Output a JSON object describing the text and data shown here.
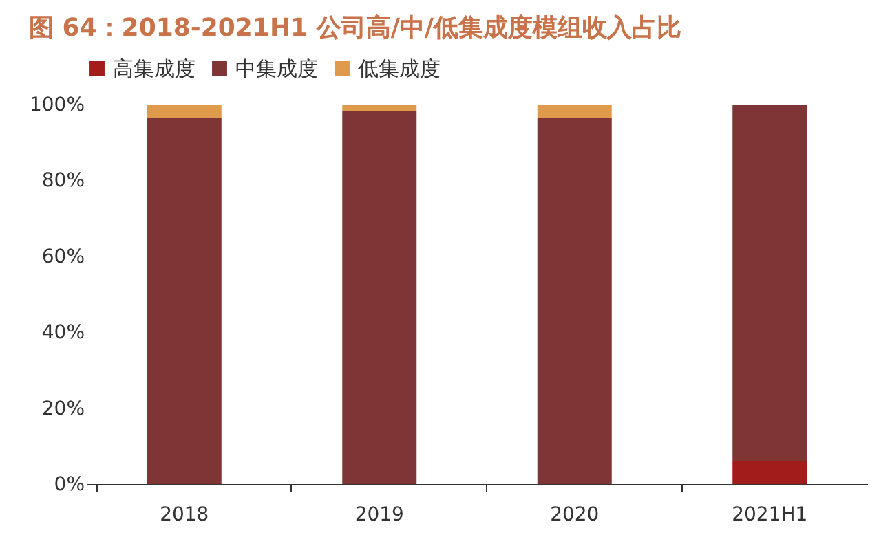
{
  "chart_data": {
    "type": "bar",
    "title": "图 64：2018-2021H1 公司高/中/低集成度模组收入占比",
    "categories": [
      "2018",
      "2019",
      "2020",
      "2021H1"
    ],
    "stacked": true,
    "series": [
      {
        "name": "高集成度",
        "color": "#a31c1c",
        "values": [
          0,
          0,
          0,
          6
        ]
      },
      {
        "name": "中集成度",
        "color": "#7f3535",
        "values": [
          96.5,
          98.2,
          96.5,
          94
        ]
      },
      {
        "name": "低集成度",
        "color": "#e09a4c",
        "values": [
          3.5,
          1.8,
          3.5,
          0
        ]
      }
    ],
    "ylim": [
      0,
      100
    ],
    "yticks": [
      {
        "value": 0,
        "label": "0%"
      },
      {
        "value": 20,
        "label": "20%"
      },
      {
        "value": 40,
        "label": "40%"
      },
      {
        "value": 60,
        "label": "60%"
      },
      {
        "value": 80,
        "label": "80%"
      },
      {
        "value": 100,
        "label": "100%"
      }
    ],
    "grid": false,
    "legend": "top"
  }
}
